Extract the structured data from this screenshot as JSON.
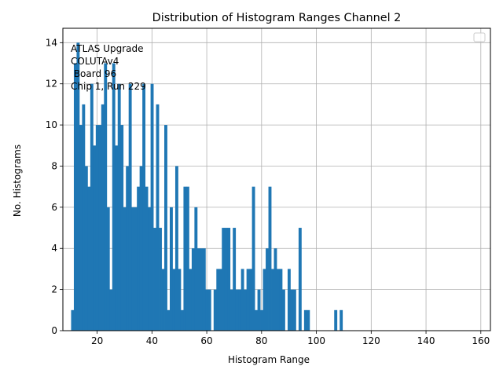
{
  "chart_data": {
    "type": "bar",
    "title": "Distribution of Histogram Ranges Channel 2",
    "xlabel": "Histogram Range",
    "ylabel": "No. Histograms",
    "xlim": [
      7.5,
      163.5
    ],
    "ylim": [
      0,
      14.7
    ],
    "xticks": [
      20,
      40,
      60,
      80,
      100,
      120,
      140,
      160
    ],
    "yticks": [
      0,
      2,
      4,
      6,
      8,
      10,
      12,
      14
    ],
    "grid": true,
    "bar_color": "#1f77b4",
    "bin_width": 1,
    "annotation": [
      "ATLAS Upgrade",
      "COLUTAv4",
      " Board 96",
      "Chip 1, Run 229"
    ],
    "legend": {
      "visible": true,
      "entries": [],
      "placement": "top-right"
    },
    "x": [
      11,
      12,
      13,
      14,
      15,
      16,
      17,
      18,
      19,
      20,
      21,
      22,
      23,
      24,
      25,
      26,
      27,
      28,
      29,
      30,
      31,
      32,
      33,
      34,
      35,
      36,
      37,
      38,
      39,
      40,
      41,
      42,
      43,
      44,
      45,
      46,
      47,
      48,
      49,
      50,
      51,
      52,
      53,
      54,
      55,
      56,
      57,
      58,
      59,
      60,
      61,
      62,
      63,
      64,
      65,
      66,
      67,
      68,
      69,
      70,
      71,
      72,
      73,
      74,
      75,
      76,
      77,
      78,
      79,
      80,
      81,
      82,
      83,
      84,
      85,
      86,
      87,
      88,
      89,
      90,
      91,
      92,
      93,
      94,
      95,
      96,
      97,
      98,
      99,
      100,
      101,
      102,
      103,
      104,
      105,
      106,
      107,
      108,
      109,
      110
    ],
    "values": [
      1,
      13,
      14,
      10,
      11,
      8,
      7,
      12,
      9,
      10,
      10,
      11,
      13,
      6,
      2,
      13,
      9,
      12,
      10,
      6,
      8,
      12,
      6,
      6,
      7,
      8,
      12,
      7,
      6,
      12,
      5,
      11,
      5,
      3,
      10,
      1,
      6,
      3,
      8,
      3,
      1,
      7,
      7,
      3,
      4,
      6,
      4,
      4,
      4,
      2,
      2,
      0,
      2,
      3,
      3,
      5,
      5,
      5,
      2,
      5,
      2,
      2,
      3,
      2,
      3,
      3,
      7,
      1,
      2,
      1,
      3,
      4,
      7,
      3,
      4,
      3,
      3,
      2,
      0,
      3,
      2,
      2,
      0,
      5,
      0,
      1,
      1,
      0,
      0,
      0,
      0,
      0,
      0,
      0,
      0,
      0,
      1,
      0,
      1,
      0
    ]
  }
}
